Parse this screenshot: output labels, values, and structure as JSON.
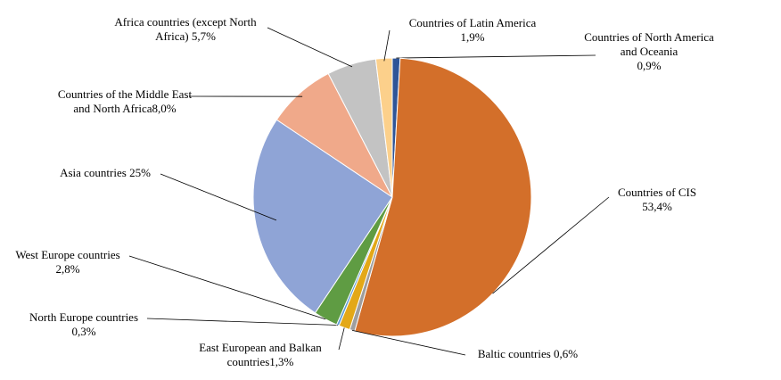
{
  "chart_data": {
    "type": "pie",
    "categories": [
      "Countries of North America and Oceania",
      "Countries of CIS",
      "Baltic countries",
      "East European and Balkan countries",
      "North Europe countries",
      "West Europe countries",
      "Asia countries",
      "Countries of the Middle East and North Africa",
      "Africa countries (except North Africa)",
      "Countries of Latin America"
    ],
    "values": [
      0.9,
      53.4,
      0.6,
      1.3,
      0.3,
      2.8,
      25,
      8.0,
      5.7,
      1.9
    ],
    "value_labels": [
      "0,9%",
      "53,4%",
      "0,6%",
      "1,3%",
      "0,3%",
      "2,8%",
      "25%",
      "8,0%",
      "5,7%",
      "1,9%"
    ],
    "colors": [
      "#2f5597",
      "#d36f2a",
      "#9e9e9e",
      "#e3a817",
      "#5b9bd5",
      "#5f9c43",
      "#8fa4d6",
      "#f0a98a",
      "#c3c3c3",
      "#fcd08b"
    ]
  }
}
